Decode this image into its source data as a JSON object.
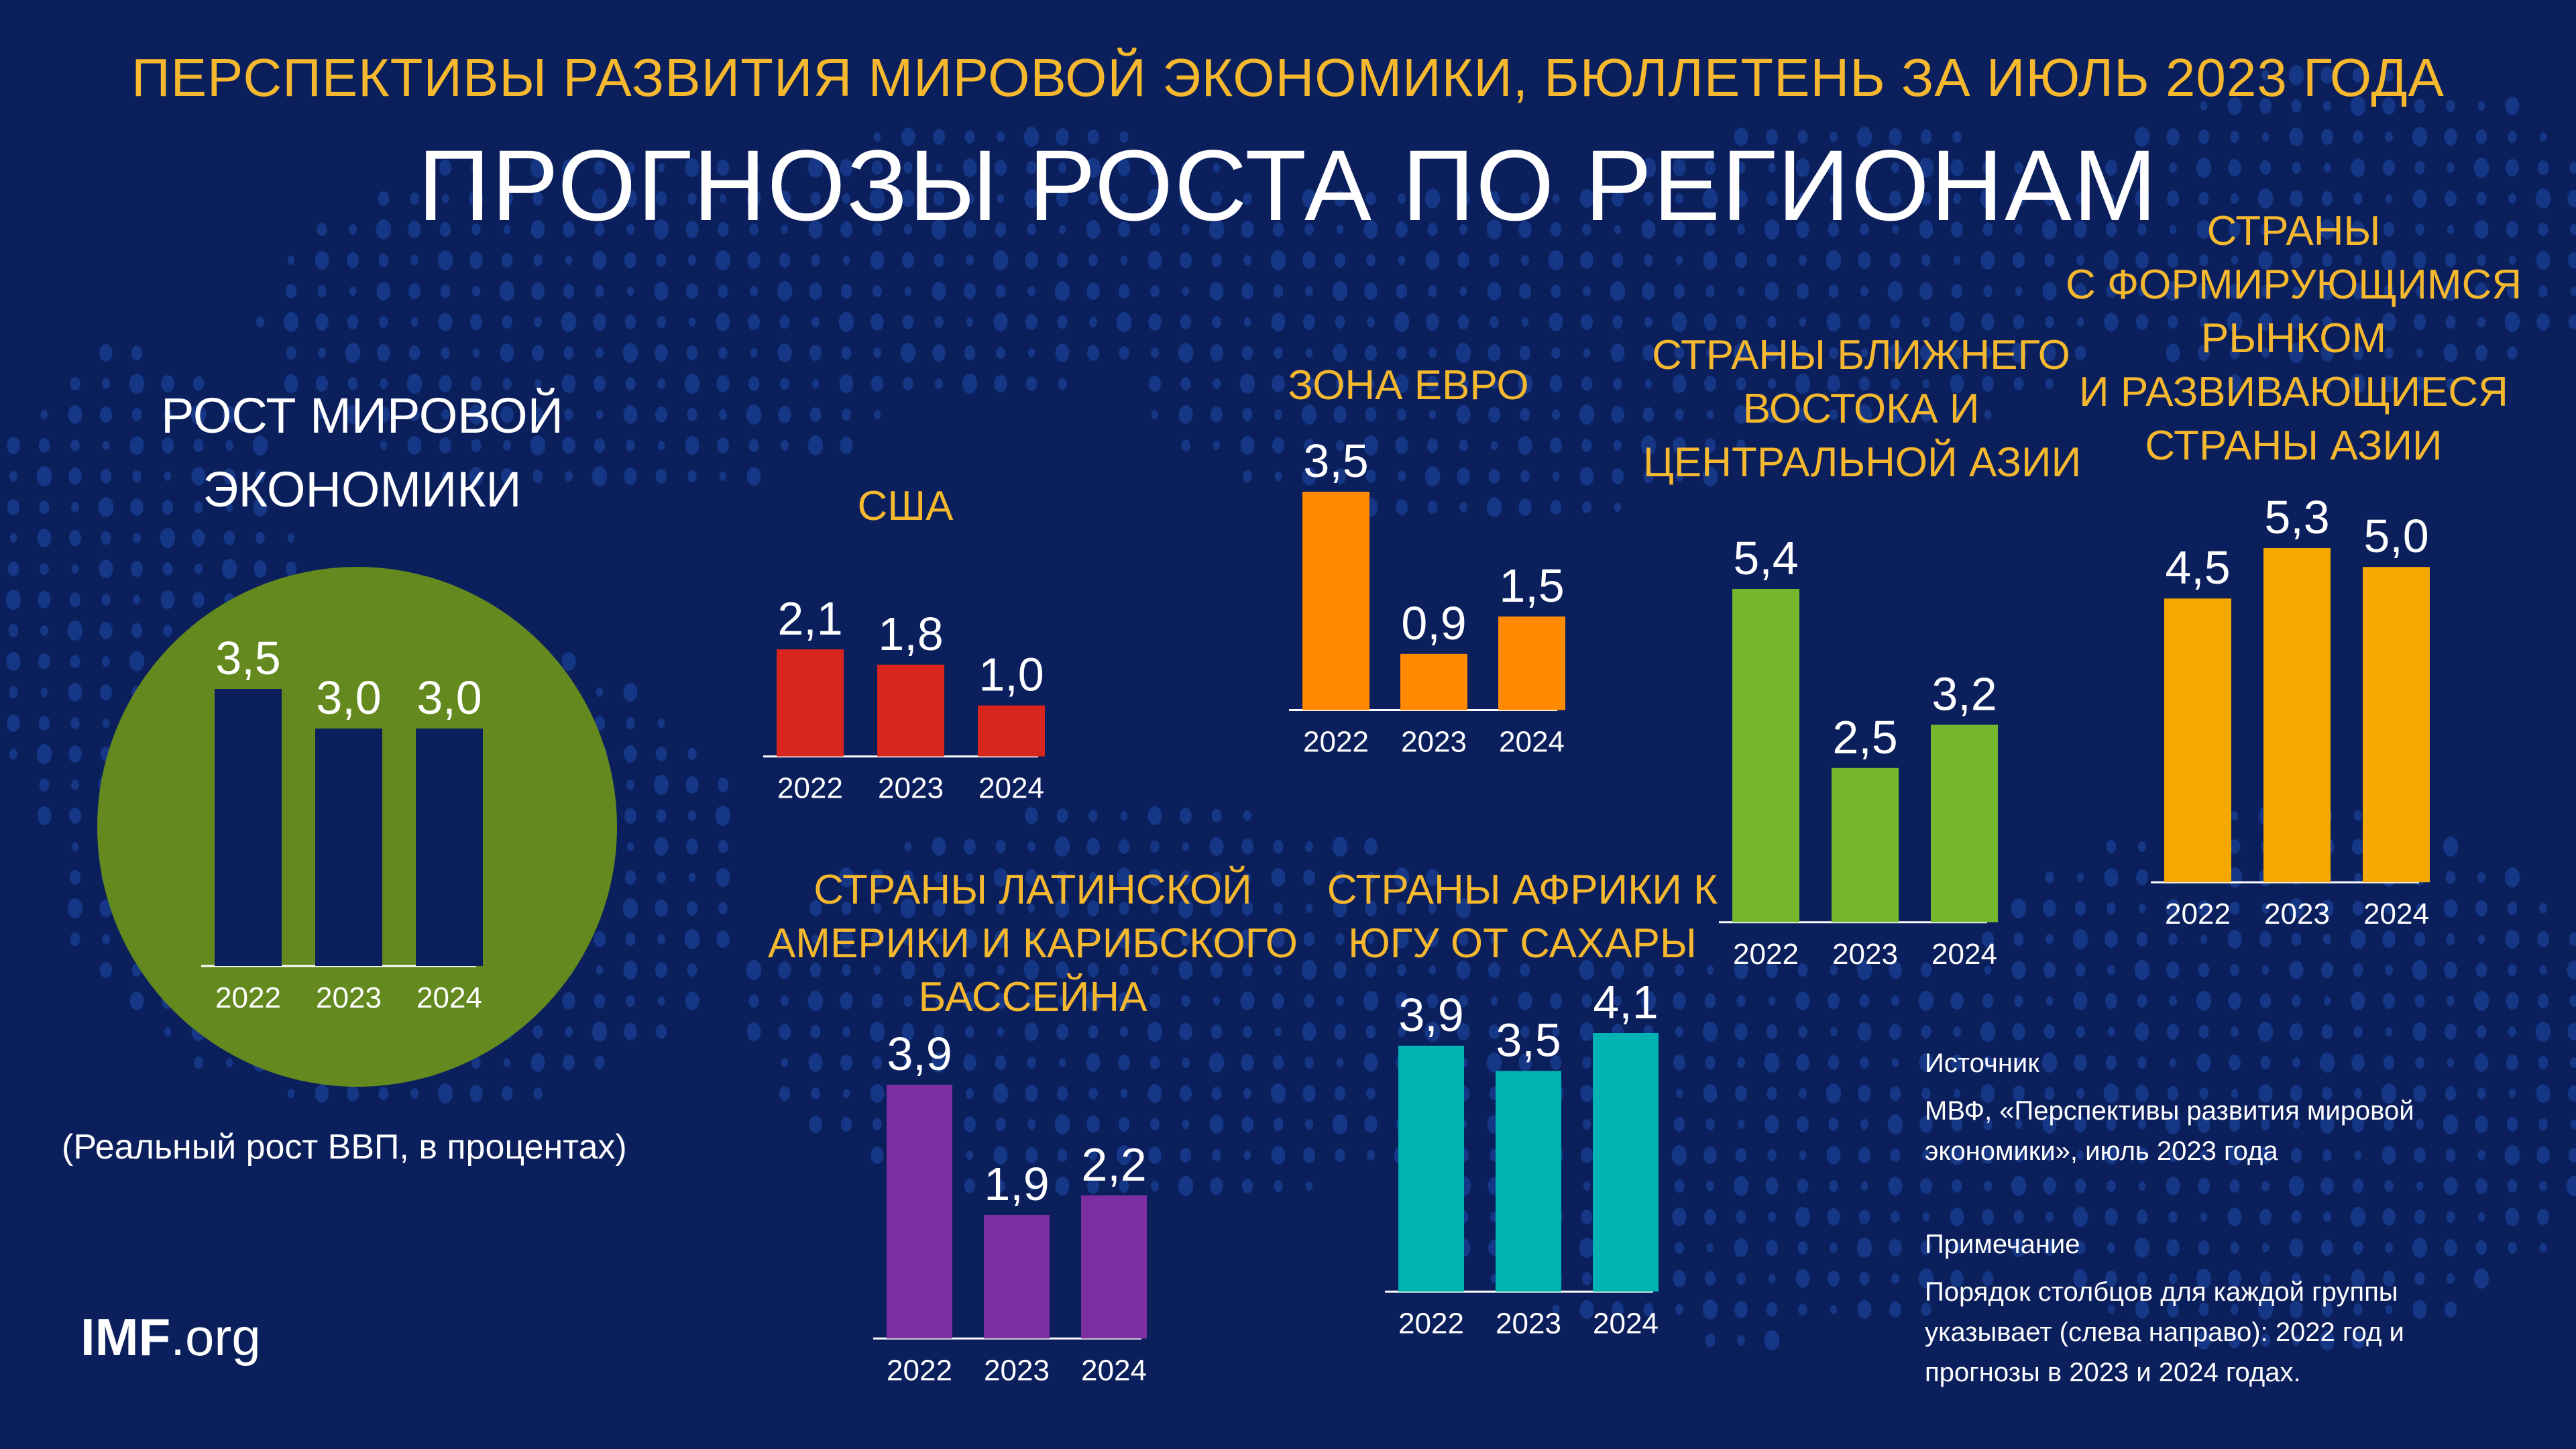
{
  "header": {
    "supertitle": "ПЕРСПЕКТИВЫ РАЗВИТИЯ МИРОВОЙ ЭКОНОМИКИ, БЮЛЛЕТЕНЬ ЗА ИЮЛЬ 2023 ГОДА",
    "title": "ПРОГНОЗЫ РОСТА ПО РЕГИОНАМ"
  },
  "unit_note": "(Реальный рост ВВП,  в процентах)",
  "logo": {
    "bold": "IMF",
    "light": ".org"
  },
  "source": {
    "heading": "Источник",
    "lines": [
      "МВФ, «Перспективы развития мировой",
      "экономики», июль 2023 года"
    ]
  },
  "note": {
    "heading": "Примечание",
    "lines": [
      "Порядок столбцов для каждой группы",
      "указывает (слева направо): 2022 год и",
      "прогнозы в 2023 и 2024 годах."
    ]
  },
  "colors": {
    "background": "#0b1f5c",
    "title_accent": "#f5b82e",
    "world_circle": "#63891f",
    "world_bars": "#0b1f5c",
    "us": "#d9261c",
    "euro": "#ff8a00",
    "mecena": "#74b72e",
    "emasia": "#f5a800",
    "latam": "#7b2fa0",
    "ssa": "#00b3b3"
  },
  "chart_data": [
    {
      "id": "world",
      "type": "bar",
      "title_lines": [
        "РОСТ МИРОВОЙ",
        "ЭКОНОМИКИ"
      ],
      "categories": [
        "2022",
        "2023",
        "2024"
      ],
      "values": [
        3.5,
        3.0,
        3.0
      ],
      "labels": [
        "3,5",
        "3,0",
        "3,0"
      ],
      "color_key": "world_bars"
    },
    {
      "id": "us",
      "type": "bar",
      "title_lines": [
        "США"
      ],
      "categories": [
        "2022",
        "2023",
        "2024"
      ],
      "values": [
        2.1,
        1.8,
        1.0
      ],
      "labels": [
        "2,1",
        "1,8",
        "1,0"
      ],
      "color_key": "us"
    },
    {
      "id": "euro",
      "type": "bar",
      "title_lines": [
        "ЗОНА ЕВРО"
      ],
      "categories": [
        "2022",
        "2023",
        "2024"
      ],
      "values": [
        3.5,
        0.9,
        1.5
      ],
      "labels": [
        "3,5",
        "0,9",
        "1,5"
      ],
      "color_key": "euro"
    },
    {
      "id": "mecena",
      "type": "bar",
      "title_lines": [
        "СТРАНЫ БЛИЖНЕГО",
        "ВОСТОКА И",
        "ЦЕНТРАЛЬНОЙ АЗИИ"
      ],
      "categories": [
        "2022",
        "2023",
        "2024"
      ],
      "values": [
        5.4,
        2.5,
        3.2
      ],
      "labels": [
        "5,4",
        "2,5",
        "3,2"
      ],
      "color_key": "mecena"
    },
    {
      "id": "emasia",
      "type": "bar",
      "title_lines": [
        "СТРАНЫ",
        "С ФОРМИРУЮЩИМСЯ",
        "РЫНКОМ",
        "И РАЗВИВАЮЩИЕСЯ",
        "СТРАНЫ АЗИИ"
      ],
      "categories": [
        "2022",
        "2023",
        "2024"
      ],
      "values": [
        4.5,
        5.3,
        5.0
      ],
      "labels": [
        "4,5",
        "5,3",
        "5,0"
      ],
      "color_key": "emasia"
    },
    {
      "id": "latam",
      "type": "bar",
      "title_lines": [
        "СТРАНЫ ЛАТИНСКОЙ",
        "АМЕРИКИ И КАРИБСКОГО",
        "БАССЕЙНА"
      ],
      "categories": [
        "2022",
        "2023",
        "2024"
      ],
      "values": [
        3.9,
        1.9,
        2.2
      ],
      "labels": [
        "3,9",
        "1,9",
        "2,2"
      ],
      "color_key": "latam"
    },
    {
      "id": "ssa",
      "type": "bar",
      "title_lines": [
        "СТРАНЫ АФРИКИ К",
        "ЮГУ ОТ САХАРЫ"
      ],
      "categories": [
        "2022",
        "2023",
        "2024"
      ],
      "values": [
        3.9,
        3.5,
        4.1
      ],
      "labels": [
        "3,9",
        "3,5",
        "4,1"
      ],
      "color_key": "ssa"
    }
  ]
}
